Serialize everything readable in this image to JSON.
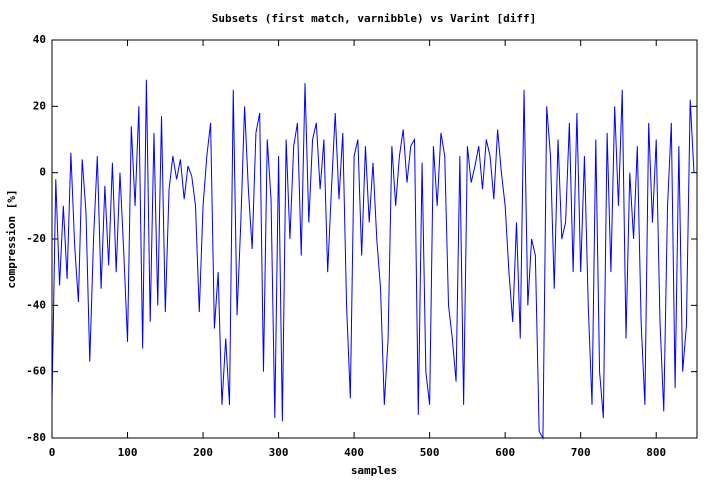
{
  "chart_data": {
    "type": "line",
    "title": "Subsets (first match, varnibble) vs Varint [diff]",
    "x_label": "samples",
    "y_label": "compression [%]",
    "color": "#0000ff",
    "x": [
      0,
      5,
      10,
      15,
      20,
      25,
      30,
      35,
      40,
      45,
      50,
      55,
      60,
      65,
      70,
      75,
      80,
      85,
      90,
      95,
      100,
      105,
      110,
      115,
      120,
      125,
      130,
      135,
      140,
      145,
      150,
      155,
      160,
      165,
      170,
      175,
      180,
      185,
      190,
      195,
      200,
      205,
      210,
      215,
      220,
      225,
      230,
      235,
      240,
      245,
      250,
      255,
      260,
      265,
      270,
      275,
      280,
      285,
      290,
      295,
      300,
      305,
      310,
      315,
      320,
      325,
      330,
      335,
      340,
      345,
      350,
      355,
      360,
      365,
      370,
      375,
      380,
      385,
      390,
      395,
      400,
      405,
      410,
      415,
      420,
      425,
      430,
      435,
      440,
      445,
      450,
      455,
      460,
      465,
      470,
      475,
      480,
      485,
      490,
      495,
      500,
      505,
      510,
      515,
      520,
      525,
      530,
      535,
      540,
      545,
      550,
      555,
      560,
      565,
      570,
      575,
      580,
      585,
      590,
      595,
      600,
      605,
      610,
      615,
      620,
      625,
      630,
      635,
      640,
      645,
      650,
      655,
      660,
      665,
      670,
      675,
      680,
      685,
      690,
      695,
      700,
      705,
      710,
      715,
      720,
      725,
      730,
      735,
      740,
      745,
      750,
      755,
      760,
      765,
      770,
      775,
      780,
      785,
      790,
      795,
      800,
      805,
      810,
      815,
      820,
      825,
      830,
      835,
      840,
      845,
      850
    ],
    "values": [
      -69,
      -2,
      -34,
      -10,
      -32,
      6,
      -22,
      -39,
      4,
      -12,
      -57,
      -20,
      5,
      -35,
      -4,
      -28,
      3,
      -30,
      0,
      -24,
      -51,
      14,
      -10,
      20,
      -53,
      28,
      -45,
      12,
      -40,
      17,
      -42,
      -5,
      5,
      -2,
      4,
      -8,
      2,
      -1,
      -10,
      -42,
      -10,
      5,
      15,
      -47,
      -30,
      -70,
      -50,
      -70,
      25,
      -43,
      -15,
      20,
      -5,
      -23,
      12,
      18,
      -60,
      10,
      -8,
      -74,
      5,
      -75,
      10,
      -20,
      8,
      15,
      -25,
      27,
      -15,
      10,
      15,
      -5,
      10,
      -30,
      -5,
      18,
      -8,
      12,
      -40,
      -68,
      5,
      10,
      -25,
      8,
      -15,
      3,
      -20,
      -35,
      -70,
      -50,
      8,
      -10,
      5,
      13,
      -3,
      8,
      10,
      -73,
      3,
      -60,
      -70,
      8,
      -10,
      12,
      5,
      -40,
      -50,
      -63,
      5,
      -70,
      8,
      -3,
      2,
      8,
      -5,
      10,
      5,
      -8,
      13,
      0,
      -10,
      -30,
      -45,
      -15,
      -50,
      25,
      -40,
      -20,
      -25,
      -78,
      -80,
      20,
      5,
      -35,
      10,
      -20,
      -15,
      15,
      -30,
      18,
      -30,
      5,
      -40,
      -70,
      10,
      -60,
      -74,
      12,
      -30,
      20,
      -10,
      25,
      -50,
      0,
      -20,
      8,
      -45,
      -70,
      15,
      -15,
      10,
      -45,
      -72,
      -10,
      15,
      -65,
      8,
      -60,
      -46,
      22,
      0
    ],
    "xlim": [
      0,
      854
    ],
    "xticks": [
      0,
      100,
      200,
      300,
      400,
      500,
      600,
      700,
      800
    ],
    "ylim": [
      -80,
      40
    ],
    "yticks": [
      -80,
      -60,
      -40,
      -20,
      0,
      20,
      40
    ]
  }
}
